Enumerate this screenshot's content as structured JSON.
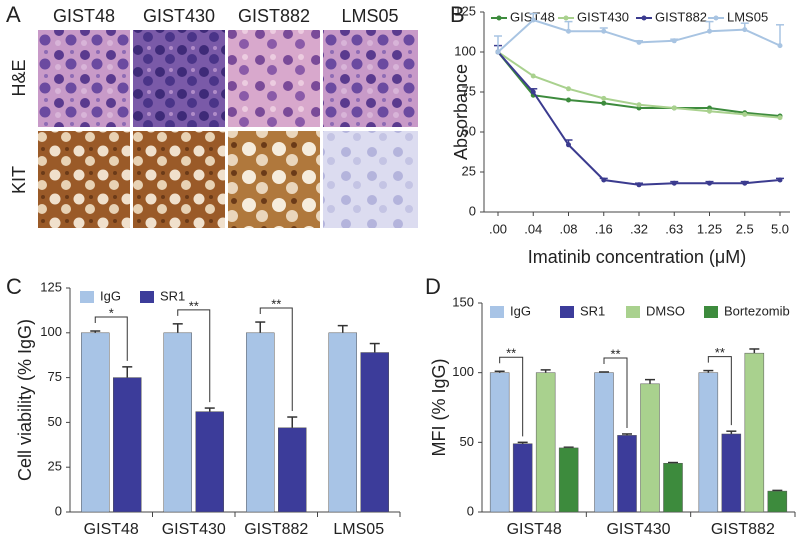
{
  "panel_labels": [
    "A",
    "B",
    "C",
    "D"
  ],
  "panel_a": {
    "columns": [
      "GIST48",
      "GIST430",
      "GIST882",
      "LMS05"
    ],
    "rows": [
      "H&E",
      "KIT"
    ]
  },
  "chart_data": [
    {
      "type": "line",
      "x_label": "Imatinib concentration (μM)",
      "y_label": "Absorbance",
      "categories": [
        ".00",
        ".04",
        ".08",
        ".16",
        ".32",
        ".63",
        "1.25",
        "2.5",
        "5.0"
      ],
      "ylim": [
        0,
        125
      ],
      "yticks": [
        0,
        25,
        50,
        75,
        100,
        125
      ],
      "series": [
        {
          "name": "GIST48",
          "color": "#3d8b3d",
          "values": [
            100,
            73,
            70,
            68,
            65,
            65,
            65,
            62,
            60
          ]
        },
        {
          "name": "GIST430",
          "color": "#a9d18e",
          "values": [
            100,
            85,
            77,
            71,
            67,
            65,
            63,
            61,
            59
          ]
        },
        {
          "name": "GIST882",
          "color": "#3b3b8f",
          "values": [
            100,
            75,
            42,
            20,
            17,
            18,
            18,
            18,
            20
          ],
          "errors": [
            4,
            2,
            3,
            1,
            1,
            1,
            1,
            1,
            1
          ]
        },
        {
          "name": "LMS05",
          "color": "#a8c4e2",
          "values": [
            100,
            120,
            113,
            113,
            106,
            107,
            113,
            114,
            104
          ],
          "errors": [
            10,
            4,
            6,
            2,
            1,
            1,
            6,
            4,
            13
          ]
        }
      ]
    },
    {
      "type": "bar",
      "y_label": "Cell viability (% IgG)",
      "categories": [
        "GIST48",
        "GIST430",
        "GIST882",
        "LMS05"
      ],
      "ylim": [
        0,
        125
      ],
      "yticks": [
        0,
        25,
        50,
        75,
        100,
        125
      ],
      "significance": [
        "*",
        "**",
        "**",
        null
      ],
      "series": [
        {
          "name": "IgG",
          "color": "#a8c4e6",
          "values": [
            100,
            100,
            100,
            100
          ],
          "errors": [
            1,
            5,
            6,
            4
          ]
        },
        {
          "name": "SR1",
          "color": "#3c3c9a",
          "values": [
            75,
            56,
            47,
            89
          ],
          "errors": [
            6,
            2,
            6,
            5
          ]
        }
      ]
    },
    {
      "type": "bar",
      "y_label": "MFI (% IgG)",
      "categories": [
        "GIST48",
        "GIST430",
        "GIST882"
      ],
      "ylim": [
        0,
        150
      ],
      "yticks": [
        0,
        50,
        100,
        150
      ],
      "significance": [
        "**",
        "**",
        "**"
      ],
      "series": [
        {
          "name": "IgG",
          "color": "#a8c4e6",
          "values": [
            100,
            100,
            100
          ],
          "errors": [
            1,
            0.5,
            1.5
          ]
        },
        {
          "name": "SR1",
          "color": "#3c3c9a",
          "values": [
            49,
            55,
            56
          ],
          "errors": [
            1,
            1,
            2
          ]
        },
        {
          "name": "DMSO",
          "color": "#a9d18e",
          "values": [
            100,
            92,
            114
          ],
          "errors": [
            2,
            3,
            3
          ]
        },
        {
          "name": "Bortezomib",
          "color": "#3d8b3d",
          "values": [
            46,
            35,
            15
          ],
          "errors": [
            0.5,
            0.5,
            0.5
          ]
        }
      ]
    }
  ]
}
